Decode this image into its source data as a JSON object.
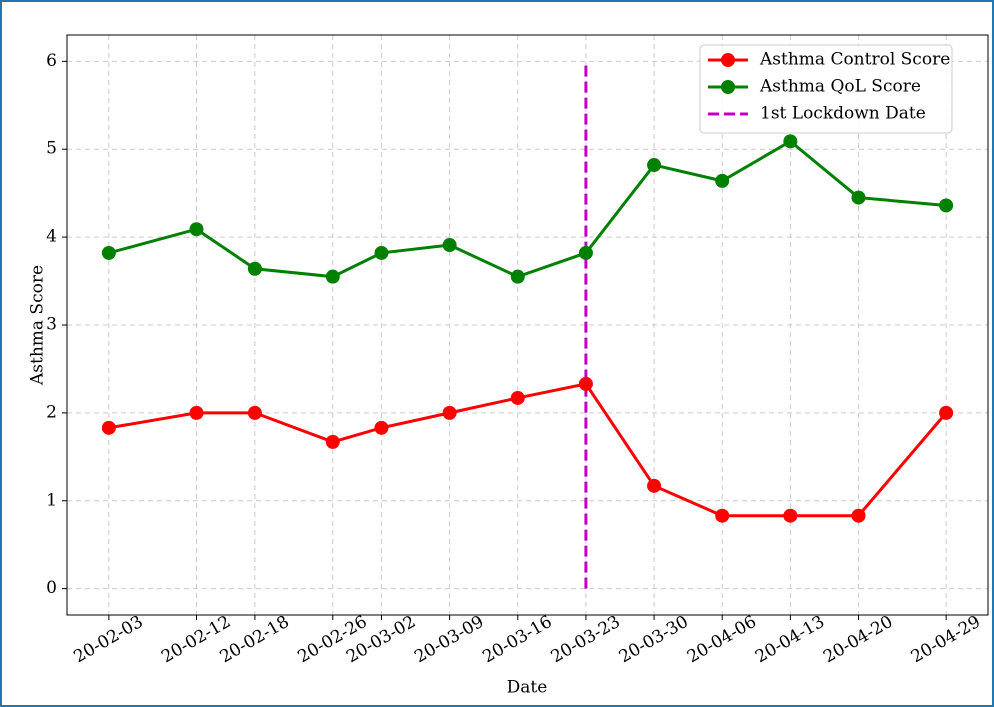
{
  "chart_data": {
    "type": "line",
    "x": [
      "20-02-03",
      "20-02-12",
      "20-02-18",
      "20-02-26",
      "20-03-02",
      "20-03-09",
      "20-03-16",
      "20-03-23",
      "20-03-30",
      "20-04-06",
      "20-04-13",
      "20-04-20",
      "20-04-29"
    ],
    "series": [
      {
        "name": "Asthma Control Score",
        "color": "#ff0000",
        "values": [
          1.83,
          2,
          2,
          1.67,
          1.83,
          2,
          2.17,
          2.33,
          1.17,
          0.83,
          0.83,
          0.83,
          2
        ]
      },
      {
        "name": "Asthma QoL Score",
        "color": "#008000",
        "values": [
          3.82,
          4.09,
          3.64,
          3.55,
          3.82,
          3.91,
          3.55,
          3.82,
          4.82,
          4.64,
          5.09,
          4.45,
          4.36
        ]
      }
    ],
    "vline": {
      "name": "1st Lockdown Date",
      "x": "20-03-23",
      "ymin": 0,
      "ymax": 6,
      "color": "#bf00bf"
    },
    "xlabel": "Date",
    "ylabel": "Asthma Score",
    "ylim": [
      -0.3,
      6.3
    ],
    "yticks": [
      0,
      1,
      2,
      3,
      4,
      5,
      6
    ],
    "grid": true,
    "legend": "upper right"
  }
}
